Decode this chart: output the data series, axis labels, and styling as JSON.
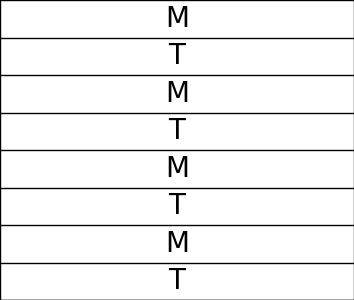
{
  "labels": [
    "M",
    "T",
    "M",
    "T",
    "M",
    "T",
    "M",
    "T"
  ],
  "n_rows": 8,
  "background_color": "#ffffff",
  "border_color": "#000000",
  "text_color": "#000000",
  "font_size": 20,
  "font_weight": "normal",
  "font_family": "DejaVu Sans",
  "line_width": 1.0
}
